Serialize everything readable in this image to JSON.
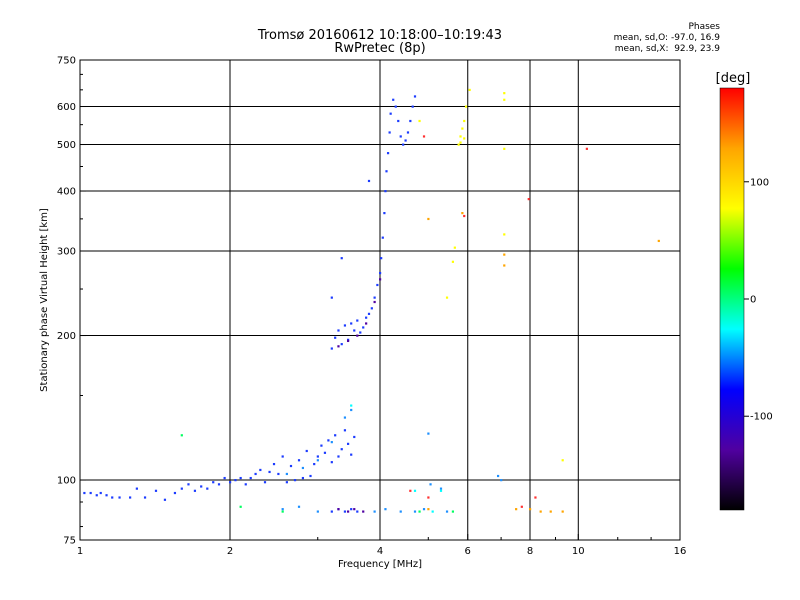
{
  "chart_data": {
    "type": "scatter",
    "title": "Tromsø 20160612 10:18:00–10:19:43",
    "subtitle": "RwPretec (8p)",
    "xlabel": "Frequency [MHz]",
    "ylabel": "Stationary phase Virtual Height [km]",
    "x_scale": "log",
    "y_scale": "log",
    "xlim": [
      1,
      16
    ],
    "ylim": [
      75,
      750
    ],
    "x_ticks": [
      1,
      2,
      4,
      6,
      8,
      10,
      16
    ],
    "y_ticks": [
      75,
      100,
      200,
      300,
      400,
      500,
      600,
      750
    ],
    "grid": true,
    "legend": {
      "title": "Phases",
      "lines": [
        "mean, sd,O: -97.0, 16.9",
        "mean, sd,X:  92.9, 23.9"
      ],
      "placement": "top-right"
    },
    "colorbar": {
      "label": "[deg]",
      "range": [
        -180,
        180
      ],
      "ticks": [
        100,
        0,
        -100
      ],
      "colors": [
        "#ff0000",
        "#ffa500",
        "#ffff00",
        "#00ff00",
        "#00ffff",
        "#0000ff",
        "#5000a0",
        "#000000"
      ]
    },
    "series": [
      {
        "phase": -100,
        "color": "#1c3cff",
        "points": [
          [
            1.02,
            94
          ],
          [
            1.05,
            94
          ],
          [
            1.08,
            93
          ],
          [
            1.1,
            94
          ],
          [
            1.13,
            93
          ],
          [
            1.16,
            92
          ],
          [
            1.2,
            92
          ],
          [
            1.26,
            92
          ],
          [
            1.3,
            96
          ],
          [
            1.35,
            92
          ],
          [
            1.42,
            95
          ],
          [
            1.48,
            91
          ],
          [
            1.55,
            94
          ],
          [
            1.6,
            96
          ],
          [
            1.65,
            98
          ],
          [
            1.7,
            95
          ],
          [
            1.75,
            97
          ],
          [
            1.8,
            96
          ],
          [
            1.85,
            99
          ],
          [
            1.9,
            98
          ],
          [
            1.95,
            101
          ],
          [
            2.0,
            99
          ],
          [
            2.05,
            100
          ],
          [
            2.1,
            101
          ],
          [
            2.15,
            98
          ],
          [
            2.2,
            101
          ],
          [
            2.25,
            103
          ],
          [
            2.3,
            105
          ],
          [
            2.35,
            99
          ],
          [
            2.4,
            104
          ],
          [
            2.45,
            108
          ],
          [
            2.5,
            103
          ],
          [
            2.55,
            112
          ],
          [
            2.6,
            99
          ],
          [
            2.65,
            107
          ],
          [
            2.7,
            100
          ],
          [
            2.75,
            110
          ],
          [
            2.8,
            101
          ],
          [
            2.85,
            115
          ],
          [
            2.9,
            102
          ],
          [
            2.95,
            108
          ],
          [
            3.0,
            112
          ],
          [
            3.05,
            118
          ],
          [
            3.1,
            114
          ],
          [
            3.15,
            121
          ],
          [
            3.2,
            109
          ],
          [
            3.25,
            124
          ],
          [
            3.3,
            112
          ],
          [
            3.35,
            116
          ],
          [
            3.4,
            127
          ],
          [
            3.45,
            119
          ],
          [
            3.5,
            113
          ],
          [
            3.55,
            123
          ],
          [
            3.2,
            188
          ],
          [
            3.25,
            198
          ],
          [
            3.3,
            205
          ],
          [
            3.35,
            192
          ],
          [
            3.4,
            210
          ],
          [
            3.45,
            196
          ],
          [
            3.5,
            212
          ],
          [
            3.55,
            205
          ],
          [
            3.6,
            215
          ],
          [
            3.65,
            203
          ],
          [
            3.7,
            208
          ],
          [
            3.75,
            218
          ],
          [
            3.8,
            222
          ],
          [
            3.85,
            228
          ],
          [
            3.9,
            240
          ],
          [
            3.95,
            255
          ],
          [
            4.0,
            270
          ],
          [
            4.02,
            290
          ],
          [
            4.05,
            320
          ],
          [
            4.08,
            360
          ],
          [
            4.1,
            400
          ],
          [
            4.12,
            440
          ],
          [
            4.15,
            480
          ],
          [
            4.18,
            530
          ],
          [
            4.2,
            580
          ],
          [
            4.25,
            620
          ],
          [
            4.3,
            600
          ],
          [
            4.35,
            560
          ],
          [
            4.4,
            520
          ],
          [
            4.45,
            500
          ],
          [
            4.5,
            510
          ],
          [
            4.55,
            530
          ],
          [
            4.6,
            560
          ],
          [
            4.65,
            600
          ],
          [
            4.7,
            630
          ],
          [
            3.2,
            86
          ],
          [
            3.3,
            87
          ],
          [
            3.4,
            86
          ],
          [
            3.5,
            87
          ],
          [
            3.6,
            86
          ],
          [
            3.2,
            240
          ],
          [
            3.35,
            290
          ],
          [
            3.8,
            420
          ]
        ]
      },
      {
        "phase": -130,
        "color": "#5000a0",
        "points": [
          [
            3.3,
            190
          ],
          [
            3.45,
            195
          ],
          [
            3.6,
            200
          ],
          [
            3.75,
            212
          ],
          [
            3.9,
            235
          ],
          [
            4.0,
            262
          ],
          [
            3.3,
            87
          ],
          [
            3.45,
            86
          ],
          [
            3.55,
            87
          ],
          [
            3.7,
            86
          ]
        ]
      },
      {
        "phase": -70,
        "color": "#1e90ff",
        "points": [
          [
            2.6,
            103
          ],
          [
            2.8,
            106
          ],
          [
            3.0,
            110
          ],
          [
            3.2,
            120
          ],
          [
            3.4,
            135
          ],
          [
            3.5,
            140
          ],
          [
            2.55,
            87
          ],
          [
            2.75,
            88
          ],
          [
            3.0,
            86
          ],
          [
            3.9,
            86
          ],
          [
            4.1,
            87
          ],
          [
            4.4,
            86
          ],
          [
            4.7,
            86
          ],
          [
            4.9,
            87
          ],
          [
            5.05,
            98
          ],
          [
            5.3,
            96
          ],
          [
            5.45,
            86
          ],
          [
            7.0,
            100
          ],
          [
            5.0,
            125
          ],
          [
            6.9,
            102
          ]
        ]
      },
      {
        "phase": 100,
        "color": "#ffff00",
        "points": [
          [
            5.75,
            500
          ],
          [
            5.8,
            520
          ],
          [
            5.85,
            540
          ],
          [
            5.9,
            560
          ],
          [
            5.95,
            600
          ],
          [
            5.8,
            505
          ],
          [
            5.9,
            515
          ],
          [
            5.45,
            240
          ],
          [
            5.6,
            285
          ],
          [
            5.65,
            305
          ],
          [
            6.05,
            650
          ],
          [
            7.1,
            620
          ],
          [
            7.1,
            640
          ],
          [
            7.1,
            490
          ],
          [
            7.1,
            325
          ],
          [
            4.8,
            560
          ],
          [
            9.3,
            110
          ]
        ]
      },
      {
        "phase": 130,
        "color": "#ffa500",
        "points": [
          [
            5.85,
            360
          ],
          [
            7.1,
            295
          ],
          [
            7.1,
            280
          ],
          [
            7.5,
            87
          ],
          [
            8.0,
            87
          ],
          [
            8.4,
            86
          ],
          [
            8.8,
            86
          ],
          [
            9.3,
            86
          ],
          [
            5.0,
            87
          ],
          [
            14.5,
            315
          ],
          [
            5.0,
            350
          ]
        ]
      },
      {
        "phase": 170,
        "color": "#ff3030",
        "points": [
          [
            5.9,
            355
          ],
          [
            4.9,
            520
          ],
          [
            7.7,
            88
          ],
          [
            8.2,
            92
          ],
          [
            10.4,
            490
          ],
          [
            7.95,
            385
          ],
          [
            5.0,
            92
          ],
          [
            4.6,
            95
          ]
        ]
      },
      {
        "phase": 30,
        "color": "#00ff60",
        "points": [
          [
            1.6,
            124
          ],
          [
            4.8,
            86
          ],
          [
            5.6,
            86
          ],
          [
            2.1,
            88
          ],
          [
            2.55,
            86
          ]
        ]
      },
      {
        "phase": -40,
        "color": "#00ffff",
        "points": [
          [
            3.5,
            143
          ],
          [
            4.7,
            95
          ],
          [
            5.1,
            86
          ],
          [
            5.3,
            95
          ]
        ]
      }
    ]
  }
}
